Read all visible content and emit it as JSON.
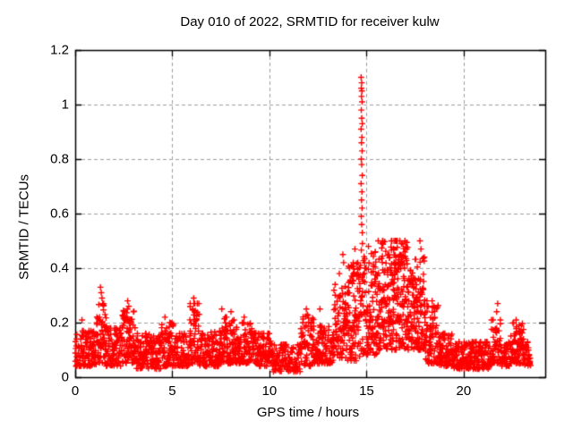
{
  "chart_data": {
    "type": "scatter",
    "title": "Day 010 of 2022, SRMTID for receiver kulw",
    "xlabel": "GPS time / hours",
    "ylabel": "SRMTID / TECUs",
    "xlim": [
      0,
      24.2
    ],
    "ylim": [
      0,
      1.2
    ],
    "xticks": [
      {
        "v": 0,
        "label": "0"
      },
      {
        "v": 5,
        "label": "5"
      },
      {
        "v": 10,
        "label": "10"
      },
      {
        "v": 15,
        "label": "15"
      },
      {
        "v": 20,
        "label": "20"
      }
    ],
    "yticks": [
      {
        "v": 0,
        "label": "0"
      },
      {
        "v": 0.2,
        "label": "0.2"
      },
      {
        "v": 0.4,
        "label": "0.4"
      },
      {
        "v": 0.6,
        "label": "0.6"
      },
      {
        "v": 0.8,
        "label": "0.8"
      },
      {
        "v": 1,
        "label": "1"
      },
      {
        "v": 1.2,
        "label": "1.2"
      }
    ],
    "grid": true,
    "legend": "none",
    "marker": "plus",
    "marker_color": "#ff0000",
    "grid_color": "#9e9e9e",
    "axis_color": "#000000",
    "background_color": "#ffffff",
    "seed": 20220110,
    "scatter_bands": [
      {
        "x0": 0.0,
        "x1": 1.1,
        "ylo": 0.04,
        "yhi": 0.17,
        "pts_per_hour": 85
      },
      {
        "x0": 1.1,
        "x1": 1.6,
        "ylo": 0.05,
        "yhi": 0.27,
        "pts_per_hour": 95
      },
      {
        "x0": 1.6,
        "x1": 2.4,
        "ylo": 0.04,
        "yhi": 0.18,
        "pts_per_hour": 85
      },
      {
        "x0": 2.4,
        "x1": 3.1,
        "ylo": 0.05,
        "yhi": 0.25,
        "pts_per_hour": 90
      },
      {
        "x0": 3.1,
        "x1": 4.4,
        "ylo": 0.03,
        "yhi": 0.16,
        "pts_per_hour": 85
      },
      {
        "x0": 4.4,
        "x1": 5.1,
        "ylo": 0.04,
        "yhi": 0.2,
        "pts_per_hour": 85
      },
      {
        "x0": 5.1,
        "x1": 5.9,
        "ylo": 0.04,
        "yhi": 0.16,
        "pts_per_hour": 85
      },
      {
        "x0": 5.9,
        "x1": 6.4,
        "ylo": 0.05,
        "yhi": 0.27,
        "pts_per_hour": 90
      },
      {
        "x0": 6.4,
        "x1": 7.4,
        "ylo": 0.04,
        "yhi": 0.17,
        "pts_per_hour": 85
      },
      {
        "x0": 7.4,
        "x1": 8.3,
        "ylo": 0.05,
        "yhi": 0.22,
        "pts_per_hour": 88
      },
      {
        "x0": 8.3,
        "x1": 9.4,
        "ylo": 0.05,
        "yhi": 0.2,
        "pts_per_hour": 85
      },
      {
        "x0": 9.4,
        "x1": 10.2,
        "ylo": 0.04,
        "yhi": 0.16,
        "pts_per_hour": 80
      },
      {
        "x0": 10.2,
        "x1": 11.6,
        "ylo": 0.02,
        "yhi": 0.12,
        "pts_per_hour": 60
      },
      {
        "x0": 11.6,
        "x1": 12.3,
        "ylo": 0.04,
        "yhi": 0.23,
        "pts_per_hour": 80
      },
      {
        "x0": 12.3,
        "x1": 13.3,
        "ylo": 0.05,
        "yhi": 0.19,
        "pts_per_hour": 85
      },
      {
        "x0": 13.3,
        "x1": 14.0,
        "ylo": 0.07,
        "yhi": 0.34,
        "pts_per_hour": 95
      },
      {
        "x0": 14.0,
        "x1": 14.65,
        "ylo": 0.06,
        "yhi": 0.42,
        "pts_per_hour": 110
      },
      {
        "x0": 14.65,
        "x1": 14.95,
        "ylo": 0.08,
        "yhi": 0.5,
        "pts_per_hour": 115
      },
      {
        "x0": 14.95,
        "x1": 15.6,
        "ylo": 0.08,
        "yhi": 0.46,
        "pts_per_hour": 115
      },
      {
        "x0": 15.6,
        "x1": 17.2,
        "ylo": 0.1,
        "yhi": 0.5,
        "pts_per_hour": 130
      },
      {
        "x0": 17.2,
        "x1": 18.0,
        "ylo": 0.1,
        "yhi": 0.44,
        "pts_per_hour": 120
      },
      {
        "x0": 18.0,
        "x1": 18.7,
        "ylo": 0.05,
        "yhi": 0.28,
        "pts_per_hour": 95
      },
      {
        "x0": 18.7,
        "x1": 19.4,
        "ylo": 0.04,
        "yhi": 0.16,
        "pts_per_hour": 85
      },
      {
        "x0": 19.4,
        "x1": 21.4,
        "ylo": 0.03,
        "yhi": 0.13,
        "pts_per_hour": 80
      },
      {
        "x0": 21.4,
        "x1": 21.9,
        "ylo": 0.05,
        "yhi": 0.21,
        "pts_per_hour": 85
      },
      {
        "x0": 21.9,
        "x1": 22.4,
        "ylo": 0.04,
        "yhi": 0.13,
        "pts_per_hour": 75
      },
      {
        "x0": 22.4,
        "x1": 23.1,
        "ylo": 0.05,
        "yhi": 0.2,
        "pts_per_hour": 95
      },
      {
        "x0": 23.1,
        "x1": 23.45,
        "ylo": 0.04,
        "yhi": 0.13,
        "pts_per_hour": 70
      }
    ],
    "spike_points": [
      [
        14.72,
        1.1
      ],
      [
        14.75,
        1.08
      ],
      [
        14.73,
        1.06
      ],
      [
        14.76,
        1.05
      ],
      [
        14.74,
        1.03
      ],
      [
        14.77,
        1.01
      ],
      [
        14.73,
        0.98
      ],
      [
        14.75,
        0.95
      ],
      [
        14.78,
        0.93
      ],
      [
        14.72,
        0.91
      ],
      [
        14.76,
        0.88
      ],
      [
        14.74,
        0.86
      ],
      [
        14.77,
        0.83
      ],
      [
        14.73,
        0.8
      ],
      [
        14.75,
        0.78
      ],
      [
        14.78,
        0.74
      ],
      [
        14.72,
        0.71
      ],
      [
        14.76,
        0.68
      ],
      [
        14.74,
        0.65
      ],
      [
        14.77,
        0.62
      ],
      [
        14.73,
        0.59
      ],
      [
        14.75,
        0.56
      ],
      [
        14.78,
        0.53
      ]
    ],
    "peak_points": [
      [
        0.35,
        0.21
      ],
      [
        1.3,
        0.33
      ],
      [
        1.34,
        0.31
      ],
      [
        1.38,
        0.29
      ],
      [
        2.7,
        0.28
      ],
      [
        2.76,
        0.26
      ],
      [
        3.0,
        0.24
      ],
      [
        4.62,
        0.22
      ],
      [
        6.1,
        0.29
      ],
      [
        6.16,
        0.27
      ],
      [
        6.05,
        0.25
      ],
      [
        7.55,
        0.25
      ],
      [
        8.02,
        0.24
      ],
      [
        8.7,
        0.22
      ],
      [
        11.9,
        0.25
      ],
      [
        11.95,
        0.23
      ],
      [
        12.6,
        0.25
      ],
      [
        13.6,
        0.38
      ],
      [
        13.78,
        0.45
      ],
      [
        13.82,
        0.42
      ],
      [
        14.4,
        0.47
      ],
      [
        15.1,
        0.48
      ],
      [
        15.6,
        0.5
      ],
      [
        16.3,
        0.5
      ],
      [
        16.55,
        0.5
      ],
      [
        16.8,
        0.49
      ],
      [
        17.75,
        0.5
      ],
      [
        17.8,
        0.47
      ],
      [
        21.7,
        0.24
      ],
      [
        21.75,
        0.27
      ],
      [
        22.7,
        0.21
      ]
    ]
  }
}
